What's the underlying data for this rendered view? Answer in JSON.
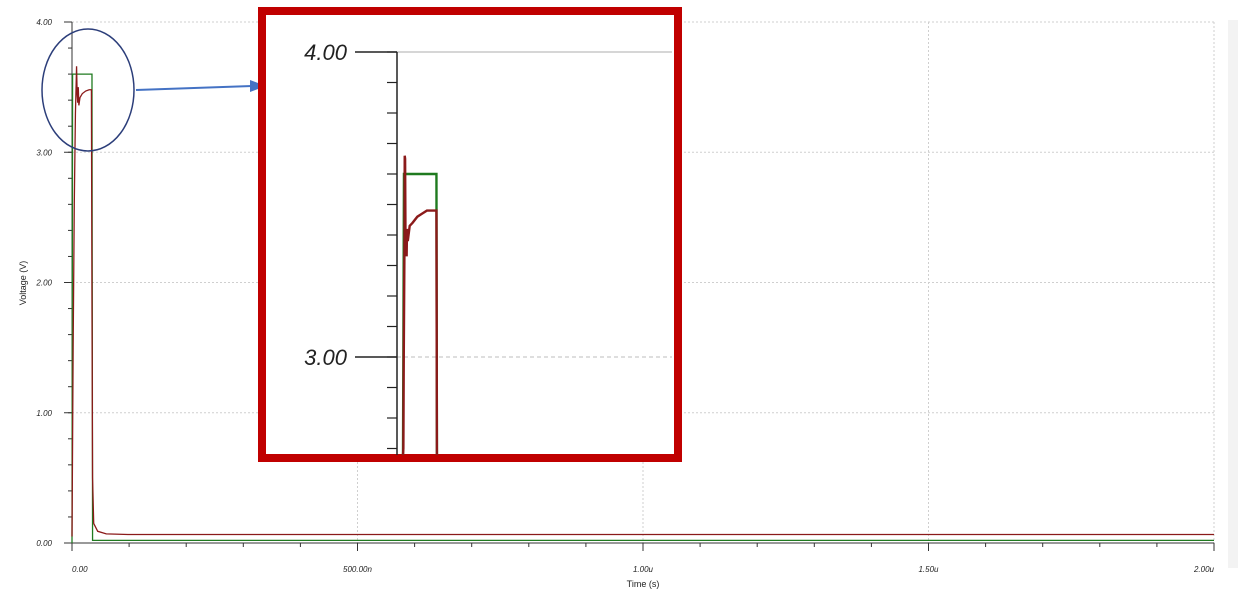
{
  "chart_data": [
    {
      "type": "line",
      "title": "",
      "xlabel": "Time (s)",
      "ylabel": "Voltage (V)",
      "xlim": [
        0,
        2e-06
      ],
      "ylim": [
        0,
        4
      ],
      "x_ticks": [
        0,
        5e-07,
        1e-06,
        1.5e-06,
        2e-06
      ],
      "x_tick_labels": [
        "0.00",
        "500.00n",
        "1.00u",
        "1.50u",
        "2.00u"
      ],
      "y_ticks": [
        0,
        1,
        2,
        3,
        4
      ],
      "y_tick_labels": [
        "0.00",
        "1.00",
        "2.00",
        "3.00",
        "4.00"
      ],
      "grid": true,
      "series": [
        {
          "color": "#1f7a1f",
          "points": [
            [
              0,
              0
            ],
            [
              1e-09,
              3.6
            ],
            [
              3.5e-08,
              3.6
            ],
            [
              3.6e-08,
              0.02
            ],
            [
              2e-06,
              0.02
            ]
          ]
        },
        {
          "color": "#8b1a1a",
          "points": [
            [
              0,
              0.05
            ],
            [
              2e-09,
              1.5
            ],
            [
              4e-09,
              2.6
            ],
            [
              6e-09,
              3.3
            ],
            [
              8e-09,
              3.66
            ],
            [
              9e-09,
              3.45
            ],
            [
              1e-08,
              3.38
            ],
            [
              1.1e-08,
              3.5
            ],
            [
              1.2e-08,
              3.36
            ],
            [
              1.4e-08,
              3.42
            ],
            [
              1.8e-08,
              3.45
            ],
            [
              2.4e-08,
              3.47
            ],
            [
              3e-08,
              3.48
            ],
            [
              3.4e-08,
              3.48
            ],
            [
              3.5e-08,
              1.8
            ],
            [
              3.6e-08,
              0.5
            ],
            [
              3.8e-08,
              0.15
            ],
            [
              4.5e-08,
              0.09
            ],
            [
              6e-08,
              0.07
            ],
            [
              1e-07,
              0.065
            ],
            [
              2e-06,
              0.065
            ]
          ]
        }
      ]
    },
    {
      "type": "line",
      "title": "",
      "ylim": [
        2.29,
        4.0
      ],
      "xlim": [
        0,
        4.5e-08
      ],
      "y_ticks": [
        3,
        4
      ],
      "y_tick_labels": [
        "3.00",
        "4.00"
      ],
      "series": [
        {
          "color": "#1f7a1f",
          "points": [
            [
              0,
              2.29
            ],
            [
              1e-09,
              3.6
            ],
            [
              3.5e-08,
              3.6
            ],
            [
              3.55e-08,
              2.29
            ]
          ]
        },
        {
          "color": "#8b1a1a",
          "points": [
            [
              0,
              2.29
            ],
            [
              4e-10,
              2.7
            ],
            [
              8e-10,
              3.0
            ],
            [
              1.2e-09,
              3.2
            ],
            [
              1.6e-09,
              3.4
            ],
            [
              1.8e-09,
              3.66
            ],
            [
              2.2e-09,
              3.65
            ],
            [
              2.6e-09,
              3.4
            ],
            [
              3e-09,
              3.35
            ],
            [
              3.4e-09,
              3.42
            ],
            [
              3.8e-09,
              3.33
            ],
            [
              4.2e-09,
              3.42
            ],
            [
              5e-09,
              3.38
            ],
            [
              7e-09,
              3.43
            ],
            [
              1e-08,
              3.44
            ],
            [
              1.5e-08,
              3.46
            ],
            [
              2e-08,
              3.47
            ],
            [
              2.5e-08,
              3.48
            ],
            [
              3e-08,
              3.48
            ],
            [
              3.5e-08,
              3.48
            ],
            [
              3.55e-08,
              2.29
            ]
          ]
        }
      ]
    }
  ]
}
